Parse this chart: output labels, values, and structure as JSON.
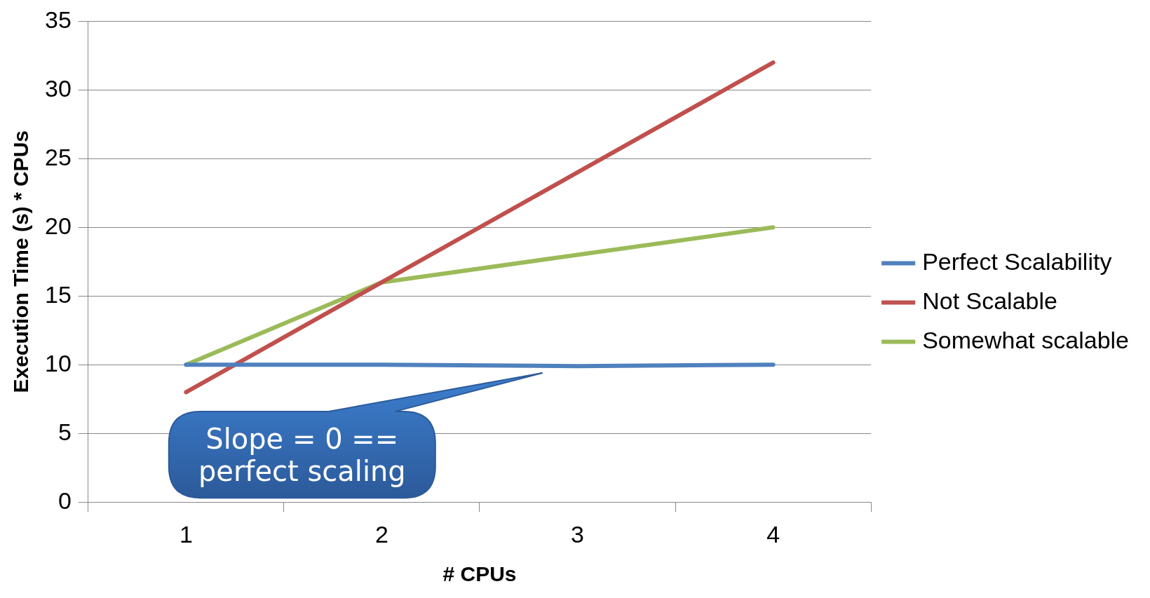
{
  "chart_data": {
    "type": "line",
    "xlabel": "# CPUs",
    "ylabel": "Execution Time (s) * CPUs",
    "categories": [
      "1",
      "2",
      "3",
      "4"
    ],
    "series": [
      {
        "name": "Perfect Scalability",
        "color": "#4f81bd",
        "values": [
          10,
          10,
          9.9,
          10
        ]
      },
      {
        "name": "Not Scalable",
        "color": "#c0504d",
        "values": [
          8,
          16,
          24,
          32
        ]
      },
      {
        "name": "Somewhat scalable",
        "color": "#9bbb59",
        "values": [
          10,
          16,
          18,
          20
        ]
      }
    ],
    "ylim": [
      0,
      35
    ],
    "yticks": [
      0,
      5,
      10,
      15,
      20,
      25,
      30,
      35
    ],
    "grid": "y",
    "legend": "right",
    "marker": "none",
    "line_style": "solid",
    "annotations": [
      "Slope = 0 == perfect scaling"
    ]
  }
}
